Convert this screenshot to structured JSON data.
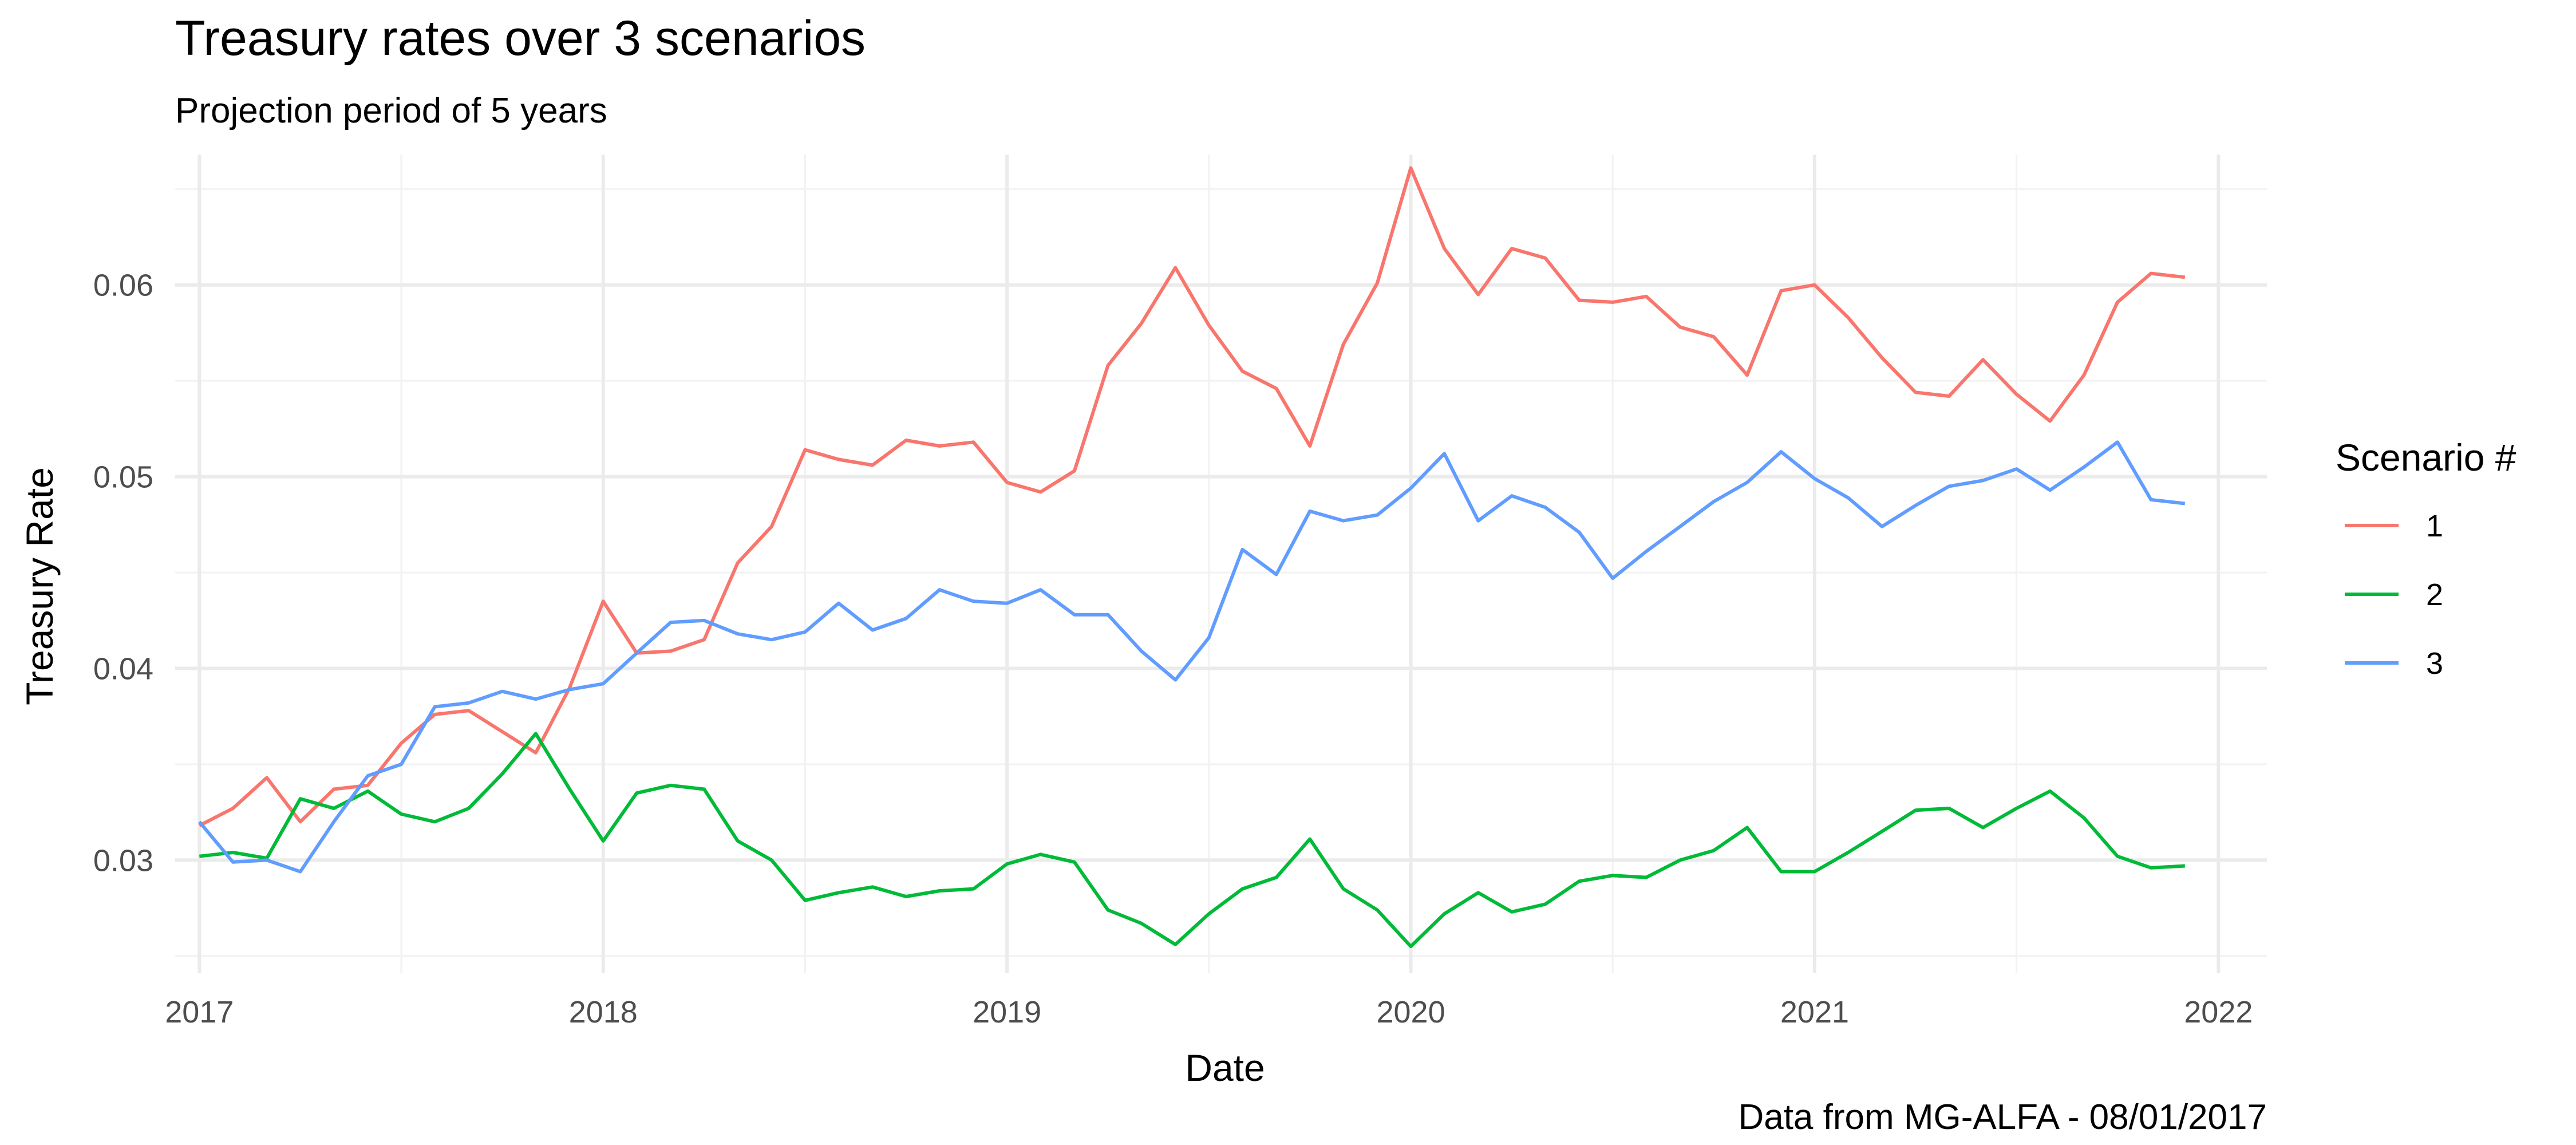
{
  "chart_data": {
    "type": "line",
    "title": "Treasury rates over 3 scenarios",
    "subtitle": "Projection period of 5 years",
    "xlabel": "Date",
    "ylabel": "Treasury Rate",
    "caption": "Data from MG-ALFA - 08/01/2017",
    "legend_title": "Scenario #",
    "legend_position": "right",
    "grid": true,
    "xlim": [
      2016.94,
      2022.12
    ],
    "ylim": [
      0.0241,
      0.0668
    ],
    "x_ticks": [
      2017,
      2018,
      2019,
      2020,
      2021,
      2022
    ],
    "x_tick_labels": [
      "2017",
      "2018",
      "2019",
      "2020",
      "2021",
      "2022"
    ],
    "y_ticks": [
      0.03,
      0.04,
      0.05,
      0.06
    ],
    "y_tick_labels": [
      "0.03",
      "0.04",
      "0.05",
      "0.06"
    ],
    "x": [
      2017.0,
      2017.083,
      2017.167,
      2017.25,
      2017.333,
      2017.417,
      2017.5,
      2017.583,
      2017.667,
      2017.75,
      2017.833,
      2017.917,
      2018.0,
      2018.083,
      2018.167,
      2018.25,
      2018.333,
      2018.417,
      2018.5,
      2018.583,
      2018.667,
      2018.75,
      2018.833,
      2018.917,
      2019.0,
      2019.083,
      2019.167,
      2019.25,
      2019.333,
      2019.417,
      2019.5,
      2019.583,
      2019.667,
      2019.75,
      2019.833,
      2019.917,
      2020.0,
      2020.083,
      2020.167,
      2020.25,
      2020.333,
      2020.417,
      2020.5,
      2020.583,
      2020.667,
      2020.75,
      2020.833,
      2020.917,
      2021.0,
      2021.083,
      2021.167,
      2021.25,
      2021.333,
      2021.417,
      2021.5,
      2021.583,
      2021.667,
      2021.75,
      2021.833,
      2021.917
    ],
    "series": [
      {
        "name": "1",
        "color": "#F8766D",
        "values": [
          0.0318,
          0.0327,
          0.0343,
          0.032,
          0.0337,
          0.0339,
          0.0361,
          0.0376,
          0.0378,
          0.0367,
          0.0356,
          0.039,
          0.0435,
          0.0408,
          0.0409,
          0.0415,
          0.0455,
          0.0474,
          0.0514,
          0.0509,
          0.0506,
          0.0519,
          0.0516,
          0.0518,
          0.0497,
          0.0492,
          0.0503,
          0.0558,
          0.058,
          0.0609,
          0.0579,
          0.0555,
          0.0546,
          0.0516,
          0.0569,
          0.0601,
          0.0661,
          0.0619,
          0.0595,
          0.0619,
          0.0614,
          0.0592,
          0.0591,
          0.0594,
          0.0578,
          0.0573,
          0.0553,
          0.0597,
          0.06,
          0.0583,
          0.0562,
          0.0544,
          0.0542,
          0.0561,
          0.0543,
          0.0529,
          0.0553,
          0.0591,
          0.0606,
          0.0604
        ]
      },
      {
        "name": "2",
        "color": "#00BA38",
        "values": [
          0.0302,
          0.0304,
          0.0301,
          0.0332,
          0.0327,
          0.0336,
          0.0324,
          0.032,
          0.0327,
          0.0345,
          0.0366,
          0.0337,
          0.031,
          0.0335,
          0.0339,
          0.0337,
          0.031,
          0.03,
          0.0279,
          0.0283,
          0.0286,
          0.0281,
          0.0284,
          0.0285,
          0.0298,
          0.0303,
          0.0299,
          0.0274,
          0.0267,
          0.0256,
          0.0272,
          0.0285,
          0.0291,
          0.0311,
          0.0285,
          0.0274,
          0.0255,
          0.0272,
          0.0283,
          0.0273,
          0.0277,
          0.0289,
          0.0292,
          0.0291,
          0.03,
          0.0305,
          0.0317,
          0.0294,
          0.0294,
          0.0304,
          0.0315,
          0.0326,
          0.0327,
          0.0317,
          0.0327,
          0.0336,
          0.0322,
          0.0302,
          0.0296,
          0.0297
        ]
      },
      {
        "name": "3",
        "color": "#619CFF",
        "values": [
          0.032,
          0.0299,
          0.03,
          0.0294,
          0.032,
          0.0344,
          0.035,
          0.038,
          0.0382,
          0.0388,
          0.0384,
          0.0389,
          0.0392,
          0.0408,
          0.0424,
          0.0425,
          0.0418,
          0.0415,
          0.0419,
          0.0434,
          0.042,
          0.0426,
          0.0441,
          0.0435,
          0.0434,
          0.0441,
          0.0428,
          0.0428,
          0.0409,
          0.0394,
          0.0416,
          0.0462,
          0.0449,
          0.0482,
          0.0477,
          0.048,
          0.0494,
          0.0512,
          0.0477,
          0.049,
          0.0484,
          0.0471,
          0.0447,
          0.0461,
          0.0474,
          0.0487,
          0.0497,
          0.0513,
          0.0499,
          0.0489,
          0.0474,
          0.0485,
          0.0495,
          0.0498,
          0.0504,
          0.0493,
          0.0505,
          0.0518,
          0.0488,
          0.0486
        ]
      }
    ]
  }
}
